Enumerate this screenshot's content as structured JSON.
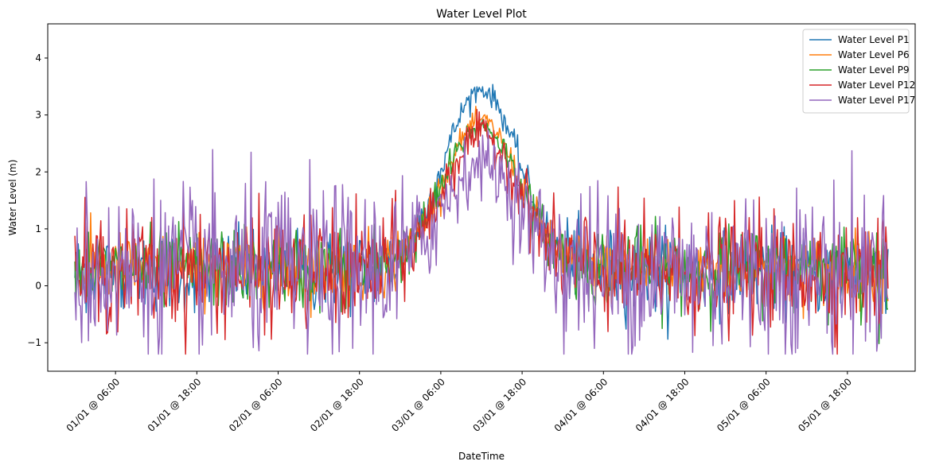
{
  "chart_data": {
    "type": "line",
    "title": "Water Level Plot",
    "xlabel": "DateTime",
    "ylabel": "Water Level (m)",
    "x_start": "2024-01-01T00:00:00",
    "x_end": "2024-01-06T00:00:00",
    "xlim": [
      "2023-12-31T20:00:00",
      "2024-01-06T04:00:00"
    ],
    "ylim": [
      -1.5,
      4.6
    ],
    "x_ticks": [
      "01/01 @ 06:00",
      "01/01 @ 18:00",
      "02/01 @ 06:00",
      "02/01 @ 18:00",
      "03/01 @ 06:00",
      "03/01 @ 18:00",
      "04/01 @ 06:00",
      "04/01 @ 18:00",
      "05/01 @ 06:00",
      "05/01 @ 18:00"
    ],
    "y_ticks": [
      -1,
      0,
      1,
      2,
      3,
      4
    ],
    "legend_position": "top-right",
    "grid": false,
    "series": [
      {
        "name": "Water Level P1",
        "color": "#1f77b4",
        "baseline": 0.25,
        "noise": 0.35,
        "peak": 3.2
      },
      {
        "name": "Water Level P6",
        "color": "#ff7f0e",
        "baseline": 0.3,
        "noise": 0.3,
        "peak": 2.6
      },
      {
        "name": "Water Level P9",
        "color": "#2ca02c",
        "baseline": 0.3,
        "noise": 0.35,
        "peak": 2.5
      },
      {
        "name": "Water Level P12",
        "color": "#d62728",
        "baseline": 0.25,
        "noise": 0.5,
        "peak": 2.4
      },
      {
        "name": "Water Level P17",
        "color": "#9467bd",
        "baseline": 0.25,
        "noise": 0.75,
        "peak": 1.9
      }
    ],
    "peak_center": "2024-01-03T12:00:00",
    "peak_halfwidth_hours": 10
  }
}
